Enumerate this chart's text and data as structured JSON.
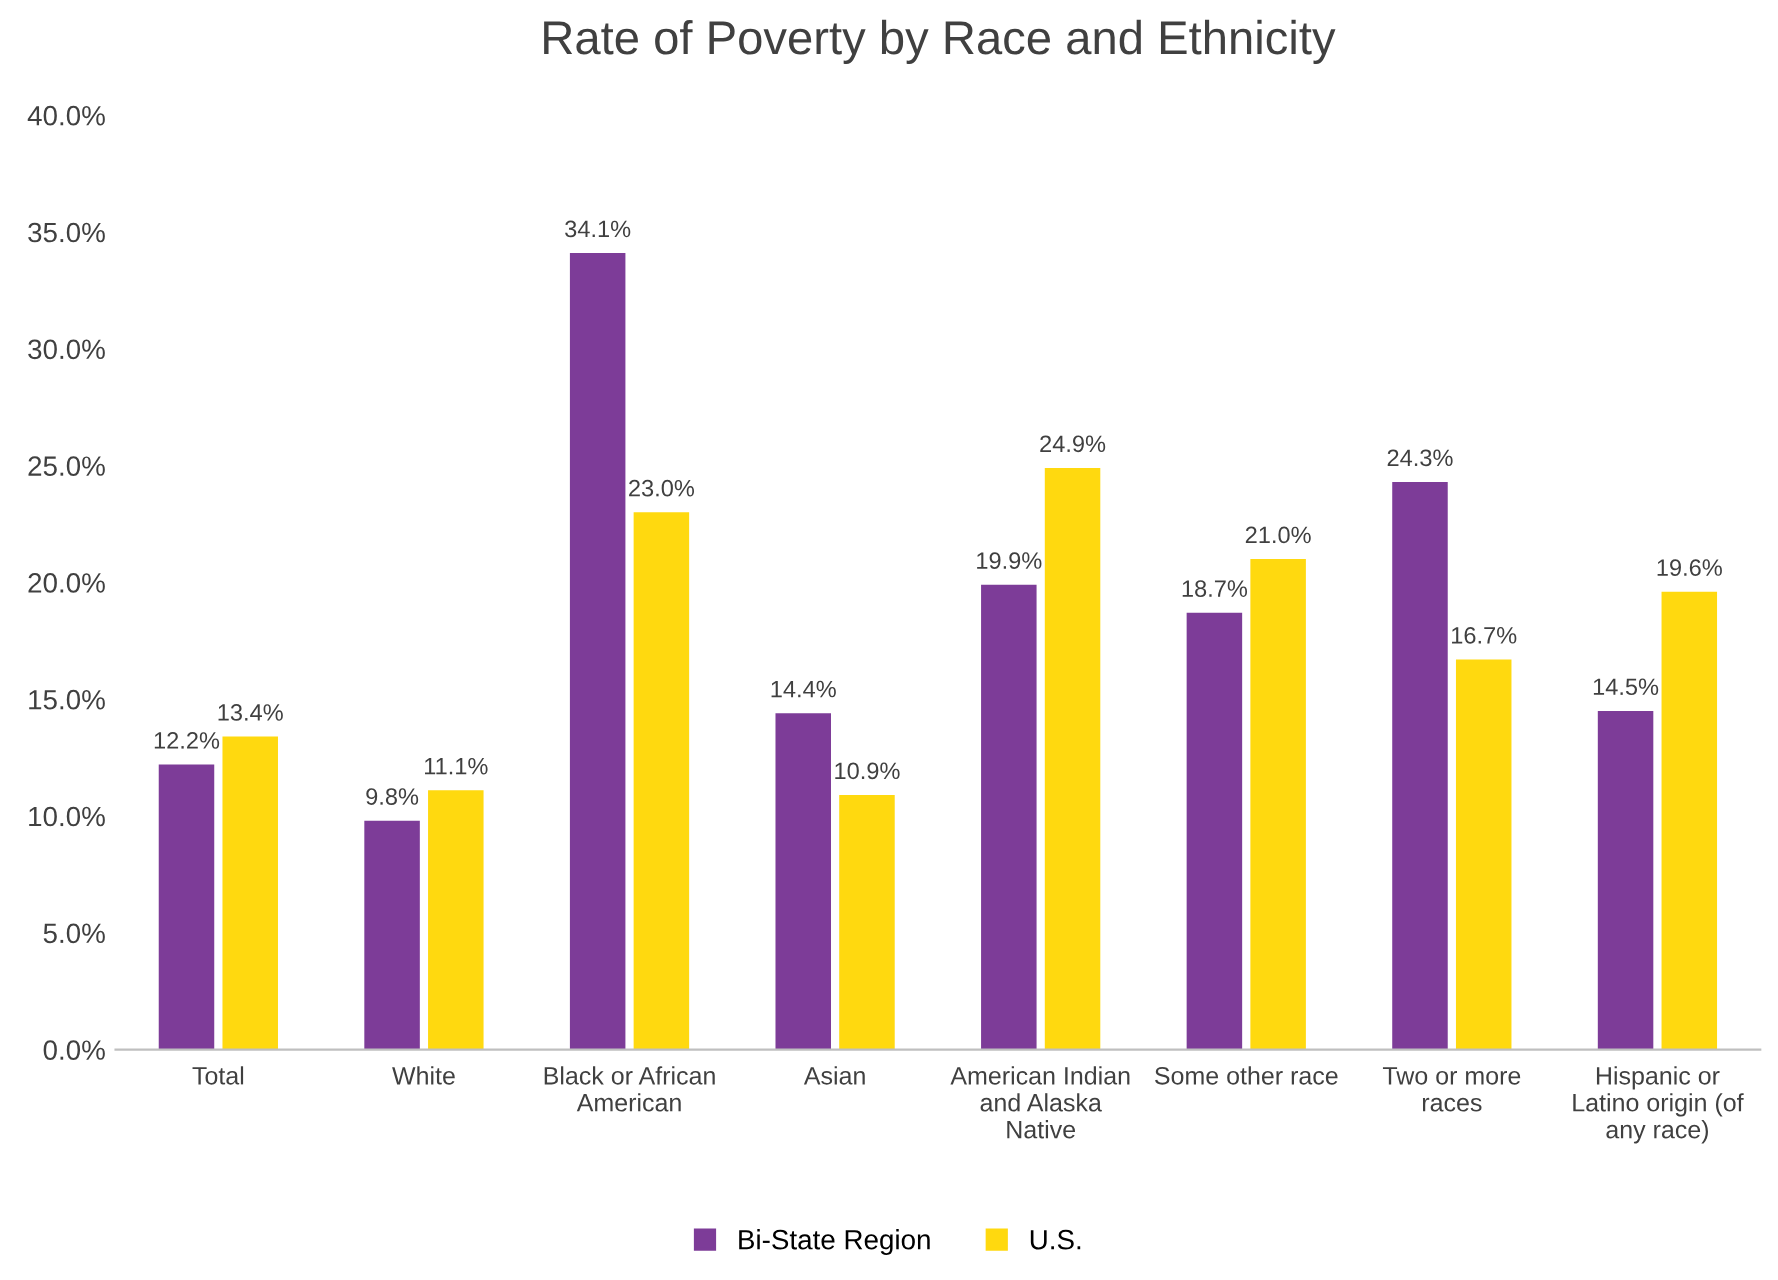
{
  "chart_data": {
    "type": "bar",
    "title": "Rate of Poverty by Race and Ethnicity",
    "categories": [
      "Total",
      "White",
      "Black or African\nAmerican",
      "Asian",
      "American Indian\nand Alaska\nNative",
      "Some other race",
      "Two or more\nraces",
      "Hispanic or\nLatino origin (of\nany race)"
    ],
    "series": [
      {
        "name": "Bi-State Region",
        "color": "#7d3c98",
        "values": [
          12.2,
          9.8,
          34.1,
          14.4,
          19.9,
          18.7,
          24.3,
          14.5
        ],
        "value_labels": [
          "12.2%",
          "9.8%",
          "34.1%",
          "14.4%",
          "19.9%",
          "18.7%",
          "24.3%",
          "14.5%"
        ]
      },
      {
        "name": "U.S.",
        "color": "#ffd90f",
        "values": [
          13.4,
          11.1,
          23.0,
          10.9,
          24.9,
          21.0,
          16.7,
          19.6
        ],
        "value_labels": [
          "13.4%",
          "11.1%",
          "23.0%",
          "10.9%",
          "24.9%",
          "21.0%",
          "16.7%",
          "19.6%"
        ]
      }
    ],
    "ylim": [
      0,
      40
    ],
    "yticks": [
      {
        "value": 0,
        "label": "0.0%"
      },
      {
        "value": 5,
        "label": "5.0%"
      },
      {
        "value": 10,
        "label": "10.0%"
      },
      {
        "value": 15,
        "label": "15.0%"
      },
      {
        "value": 20,
        "label": "20.0%"
      },
      {
        "value": 25,
        "label": "25.0%"
      },
      {
        "value": 30,
        "label": "30.0%"
      },
      {
        "value": 35,
        "label": "35.0%"
      },
      {
        "value": 40,
        "label": "40.0%"
      }
    ],
    "grid": false,
    "legend": "bottom"
  }
}
